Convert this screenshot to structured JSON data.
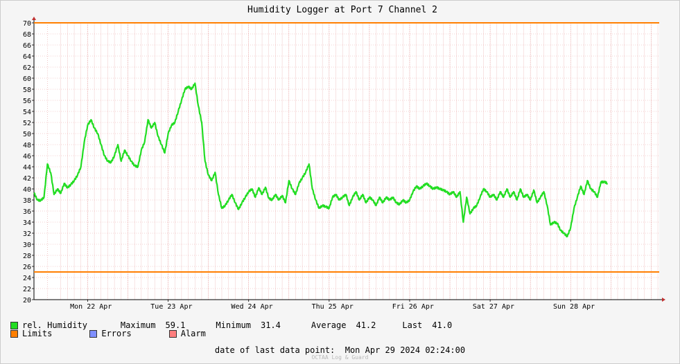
{
  "chart_data": {
    "type": "line",
    "title": "Humidity Logger at Port 7 Channel 2",
    "ylim": [
      20,
      70
    ],
    "y_ticks": [
      20,
      22,
      24,
      26,
      28,
      30,
      32,
      34,
      36,
      38,
      40,
      42,
      44,
      46,
      48,
      50,
      52,
      54,
      56,
      58,
      60,
      62,
      64,
      66,
      68,
      70
    ],
    "x_range": [
      "2024-04-21 08:00",
      "2024-04-29 02:24"
    ],
    "x_tick_labels": [
      "Mon 22 Apr",
      "Tue 23 Apr",
      "Wed 24 Apr",
      "Thu 25 Apr",
      "Fri 26 Apr",
      "Sat 27 Apr",
      "Sun 28 Apr"
    ],
    "grid": true,
    "limits": [
      {
        "name": "Limits",
        "values": [
          70,
          25
        ],
        "color": "#ff7f00"
      }
    ],
    "series": [
      {
        "name": "rel. Humidity",
        "color": "#22dd22",
        "points": [
          [
            "2024-04-21 08:00",
            39.3
          ],
          [
            "2024-04-21 09:00",
            38.0
          ],
          [
            "2024-04-21 10:00",
            37.9
          ],
          [
            "2024-04-21 11:00",
            38.5
          ],
          [
            "2024-04-21 12:00",
            44.5
          ],
          [
            "2024-04-21 13:00",
            42.9
          ],
          [
            "2024-04-21 14:00",
            39.0
          ],
          [
            "2024-04-21 15:00",
            40.0
          ],
          [
            "2024-04-21 16:00",
            39.2
          ],
          [
            "2024-04-21 17:00",
            41.0
          ],
          [
            "2024-04-21 18:00",
            40.2
          ],
          [
            "2024-04-21 19:00",
            40.8
          ],
          [
            "2024-04-21 20:00",
            41.5
          ],
          [
            "2024-04-21 21:00",
            42.5
          ],
          [
            "2024-04-21 22:00",
            44.0
          ],
          [
            "2024-04-21 23:00",
            48.5
          ],
          [
            "2024-04-22 00:00",
            51.5
          ],
          [
            "2024-04-22 01:00",
            52.5
          ],
          [
            "2024-04-22 02:00",
            51.0
          ],
          [
            "2024-04-22 03:00",
            50.0
          ],
          [
            "2024-04-22 04:00",
            48.0
          ],
          [
            "2024-04-22 05:00",
            46.0
          ],
          [
            "2024-04-22 06:00",
            45.0
          ],
          [
            "2024-04-22 07:00",
            44.8
          ],
          [
            "2024-04-22 08:00",
            46.0
          ],
          [
            "2024-04-22 09:00",
            48.0
          ],
          [
            "2024-04-22 10:00",
            45.0
          ],
          [
            "2024-04-22 11:00",
            47.0
          ],
          [
            "2024-04-22 12:00",
            46.0
          ],
          [
            "2024-04-22 13:00",
            45.0
          ],
          [
            "2024-04-22 14:00",
            44.2
          ],
          [
            "2024-04-22 15:00",
            44.0
          ],
          [
            "2024-04-22 16:00",
            47.0
          ],
          [
            "2024-04-22 17:00",
            48.5
          ],
          [
            "2024-04-22 18:00",
            52.5
          ],
          [
            "2024-04-22 19:00",
            51.0
          ],
          [
            "2024-04-22 20:00",
            52.0
          ],
          [
            "2024-04-22 21:00",
            49.5
          ],
          [
            "2024-04-22 22:00",
            48.0
          ],
          [
            "2024-04-22 23:00",
            46.5
          ],
          [
            "2024-04-23 00:00",
            50.0
          ],
          [
            "2024-04-23 01:00",
            51.5
          ],
          [
            "2024-04-23 02:00",
            52.0
          ],
          [
            "2024-04-23 03:00",
            54.0
          ],
          [
            "2024-04-23 04:00",
            56.0
          ],
          [
            "2024-04-23 05:00",
            58.0
          ],
          [
            "2024-04-23 06:00",
            58.5
          ],
          [
            "2024-04-23 07:00",
            58.0
          ],
          [
            "2024-04-23 08:00",
            59.1
          ],
          [
            "2024-04-23 09:00",
            55.0
          ],
          [
            "2024-04-23 10:00",
            52.0
          ],
          [
            "2024-04-23 11:00",
            45.0
          ],
          [
            "2024-04-23 12:00",
            42.5
          ],
          [
            "2024-04-23 13:00",
            41.5
          ],
          [
            "2024-04-23 14:00",
            43.0
          ],
          [
            "2024-04-23 15:00",
            39.0
          ],
          [
            "2024-04-23 16:00",
            36.5
          ],
          [
            "2024-04-23 17:00",
            37.0
          ],
          [
            "2024-04-23 18:00",
            38.0
          ],
          [
            "2024-04-23 19:00",
            39.0
          ],
          [
            "2024-04-23 20:00",
            37.5
          ],
          [
            "2024-04-23 21:00",
            36.3
          ],
          [
            "2024-04-23 22:00",
            37.5
          ],
          [
            "2024-04-23 23:00",
            38.5
          ],
          [
            "2024-04-24 00:00",
            39.5
          ],
          [
            "2024-04-24 01:00",
            40.0
          ],
          [
            "2024-04-24 02:00",
            38.5
          ],
          [
            "2024-04-24 03:00",
            40.2
          ],
          [
            "2024-04-24 04:00",
            39.0
          ],
          [
            "2024-04-24 05:00",
            40.3
          ],
          [
            "2024-04-24 06:00",
            38.3
          ],
          [
            "2024-04-24 07:00",
            38.0
          ],
          [
            "2024-04-24 08:00",
            39.0
          ],
          [
            "2024-04-24 09:00",
            38.0
          ],
          [
            "2024-04-24 10:00",
            38.8
          ],
          [
            "2024-04-24 11:00",
            37.5
          ],
          [
            "2024-04-24 12:00",
            41.5
          ],
          [
            "2024-04-24 13:00",
            40.0
          ],
          [
            "2024-04-24 14:00",
            39.0
          ],
          [
            "2024-04-24 15:00",
            41.0
          ],
          [
            "2024-04-24 16:00",
            42.0
          ],
          [
            "2024-04-24 17:00",
            43.0
          ],
          [
            "2024-04-24 18:00",
            44.5
          ],
          [
            "2024-04-24 19:00",
            40.0
          ],
          [
            "2024-04-24 20:00",
            38.0
          ],
          [
            "2024-04-24 21:00",
            36.5
          ],
          [
            "2024-04-24 22:00",
            37.0
          ],
          [
            "2024-04-24 23:00",
            36.8
          ],
          [
            "2024-04-25 00:00",
            36.5
          ],
          [
            "2024-04-25 01:00",
            38.5
          ],
          [
            "2024-04-25 02:00",
            39.0
          ],
          [
            "2024-04-25 03:00",
            38.0
          ],
          [
            "2024-04-25 04:00",
            38.5
          ],
          [
            "2024-04-25 05:00",
            39.0
          ],
          [
            "2024-04-25 06:00",
            37.0
          ],
          [
            "2024-04-25 07:00",
            38.5
          ],
          [
            "2024-04-25 08:00",
            39.5
          ],
          [
            "2024-04-25 09:00",
            38.0
          ],
          [
            "2024-04-25 10:00",
            39.0
          ],
          [
            "2024-04-25 11:00",
            37.5
          ],
          [
            "2024-04-25 12:00",
            38.5
          ],
          [
            "2024-04-25 13:00",
            38.0
          ],
          [
            "2024-04-25 14:00",
            37.0
          ],
          [
            "2024-04-25 15:00",
            38.5
          ],
          [
            "2024-04-25 16:00",
            37.5
          ],
          [
            "2024-04-25 17:00",
            38.5
          ],
          [
            "2024-04-25 18:00",
            38.0
          ],
          [
            "2024-04-25 19:00",
            38.5
          ],
          [
            "2024-04-25 20:00",
            37.5
          ],
          [
            "2024-04-25 21:00",
            37.2
          ],
          [
            "2024-04-25 22:00",
            38.0
          ],
          [
            "2024-04-25 23:00",
            37.5
          ],
          [
            "2024-04-26 00:00",
            38.0
          ],
          [
            "2024-04-26 01:00",
            39.5
          ],
          [
            "2024-04-26 02:00",
            40.5
          ],
          [
            "2024-04-26 03:00",
            40.0
          ],
          [
            "2024-04-26 04:00",
            40.5
          ],
          [
            "2024-04-26 05:00",
            41.0
          ],
          [
            "2024-04-26 06:00",
            40.5
          ],
          [
            "2024-04-26 07:00",
            40.0
          ],
          [
            "2024-04-26 08:00",
            40.3
          ],
          [
            "2024-04-26 09:00",
            40.0
          ],
          [
            "2024-04-26 10:00",
            39.8
          ],
          [
            "2024-04-26 11:00",
            39.5
          ],
          [
            "2024-04-26 12:00",
            39.0
          ],
          [
            "2024-04-26 13:00",
            39.5
          ],
          [
            "2024-04-26 14:00",
            38.5
          ],
          [
            "2024-04-26 15:00",
            39.5
          ],
          [
            "2024-04-26 16:00",
            34.0
          ],
          [
            "2024-04-26 17:00",
            38.5
          ],
          [
            "2024-04-26 18:00",
            35.5
          ],
          [
            "2024-04-26 19:00",
            36.5
          ],
          [
            "2024-04-26 20:00",
            37.0
          ],
          [
            "2024-04-26 21:00",
            38.5
          ],
          [
            "2024-04-26 22:00",
            40.0
          ],
          [
            "2024-04-26 23:00",
            39.5
          ],
          [
            "2024-04-27 00:00",
            38.5
          ],
          [
            "2024-04-27 01:00",
            39.0
          ],
          [
            "2024-04-27 02:00",
            38.0
          ],
          [
            "2024-04-27 03:00",
            39.5
          ],
          [
            "2024-04-27 04:00",
            38.5
          ],
          [
            "2024-04-27 05:00",
            40.0
          ],
          [
            "2024-04-27 06:00",
            38.5
          ],
          [
            "2024-04-27 07:00",
            39.5
          ],
          [
            "2024-04-27 08:00",
            38.0
          ],
          [
            "2024-04-27 09:00",
            40.0
          ],
          [
            "2024-04-27 10:00",
            38.5
          ],
          [
            "2024-04-27 11:00",
            39.0
          ],
          [
            "2024-04-27 12:00",
            38.0
          ],
          [
            "2024-04-27 13:00",
            39.8
          ],
          [
            "2024-04-27 14:00",
            37.5
          ],
          [
            "2024-04-27 15:00",
            38.5
          ],
          [
            "2024-04-27 16:00",
            39.5
          ],
          [
            "2024-04-27 17:00",
            37.0
          ],
          [
            "2024-04-27 18:00",
            33.5
          ],
          [
            "2024-04-27 19:00",
            34.0
          ],
          [
            "2024-04-27 20:00",
            33.8
          ],
          [
            "2024-04-27 21:00",
            32.5
          ],
          [
            "2024-04-27 22:00",
            32.0
          ],
          [
            "2024-04-27 23:00",
            31.4
          ],
          [
            "2024-04-28 00:00",
            33.0
          ],
          [
            "2024-04-28 01:00",
            36.5
          ],
          [
            "2024-04-28 02:00",
            38.5
          ],
          [
            "2024-04-28 03:00",
            40.5
          ],
          [
            "2024-04-28 04:00",
            39.0
          ],
          [
            "2024-04-28 05:00",
            41.5
          ],
          [
            "2024-04-28 06:00",
            40.0
          ],
          [
            "2024-04-28 07:00",
            39.5
          ],
          [
            "2024-04-28 08:00",
            38.5
          ],
          [
            "2024-04-28 09:00",
            41.2
          ],
          [
            "2024-04-28 10:00",
            41.3
          ],
          [
            "2024-04-28 11:00",
            41.0
          ]
        ]
      }
    ]
  },
  "legend": {
    "humidity_label": "rel. Humidity",
    "max_label": "Maximum",
    "max_value": "59.1",
    "min_label": "Minimum",
    "min_value": "31.4",
    "avg_label": "Average",
    "avg_value": "41.2",
    "last_label": "Last",
    "last_value": "41.0",
    "limits_label": "Limits",
    "errors_label": "Errors",
    "alarm_label": "Alarm",
    "humidity_color": "#22dd22",
    "limits_color": "#ff7f00",
    "errors_color": "#7f8fff",
    "alarm_color": "#ff7f7f"
  },
  "footer": {
    "last_point_label": "date of last data point:",
    "last_point_value": "Mon Apr 29 2024 02:24:00",
    "watermark": "OCTAA Log & Guard"
  }
}
